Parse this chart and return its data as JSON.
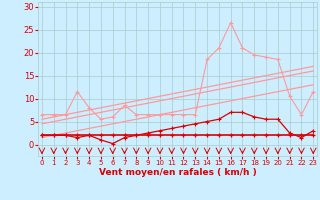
{
  "x": [
    0,
    1,
    2,
    3,
    4,
    5,
    6,
    7,
    8,
    9,
    10,
    11,
    12,
    13,
    14,
    15,
    16,
    17,
    18,
    19,
    20,
    21,
    22,
    23
  ],
  "line_flat_dark": [
    2,
    2,
    2,
    2,
    2,
    2,
    2,
    2,
    2,
    2,
    2,
    2,
    2,
    2,
    2,
    2,
    2,
    2,
    2,
    2,
    2,
    2,
    2,
    2
  ],
  "line_wavy_dark": [
    2,
    2,
    2,
    1.5,
    2,
    1,
    0.2,
    1.5,
    2,
    2.5,
    3,
    3.5,
    4,
    4.5,
    5,
    5.5,
    7,
    7,
    6,
    5.5,
    5.5,
    2.5,
    1.5,
    3
  ],
  "line_light_pink": [
    6.5,
    6.5,
    6.5,
    11.5,
    8,
    5.5,
    6,
    8.5,
    6.5,
    6.5,
    6.5,
    6.5,
    6.5,
    6.5,
    18.5,
    21,
    26.5,
    21,
    19.5,
    19,
    18.5,
    10.5,
    6.5,
    11.5
  ],
  "trend1": [
    1.5,
    2.0,
    2.5,
    3.0,
    3.5,
    4.0,
    4.5,
    5.0,
    5.5,
    6.0,
    6.5,
    7.0,
    7.5,
    8.0,
    8.5,
    9.0,
    9.5,
    10.0,
    10.5,
    11.0,
    11.5,
    12.0,
    12.5,
    13.0
  ],
  "trend2": [
    5.5,
    6.0,
    6.5,
    7.0,
    7.5,
    8.0,
    8.5,
    9.0,
    9.5,
    10.0,
    10.5,
    11.0,
    11.5,
    12.0,
    12.5,
    13.0,
    13.5,
    14.0,
    14.5,
    15.0,
    15.5,
    16.0,
    16.5,
    17.0
  ],
  "trend3": [
    4.5,
    5.0,
    5.5,
    6.0,
    6.5,
    7.0,
    7.5,
    8.0,
    8.5,
    9.0,
    9.5,
    10.0,
    10.5,
    11.0,
    11.5,
    12.0,
    12.5,
    13.0,
    13.5,
    14.0,
    14.5,
    15.0,
    15.5,
    16.0
  ],
  "bg_color": "#cceeff",
  "grid_color": "#aacccc",
  "line_color_light": "#ff9999",
  "line_color_dark": "#dd0000",
  "xlabel": "Vent moyen/en rafales ( km/h )",
  "xlim": [
    -0.3,
    23.3
  ],
  "ylim": [
    -2.5,
    31
  ],
  "yticks": [
    0,
    5,
    10,
    15,
    20,
    25,
    30
  ],
  "xticks": [
    0,
    1,
    2,
    3,
    4,
    5,
    6,
    7,
    8,
    9,
    10,
    11,
    12,
    13,
    14,
    15,
    16,
    17,
    18,
    19,
    20,
    21,
    22,
    23
  ]
}
